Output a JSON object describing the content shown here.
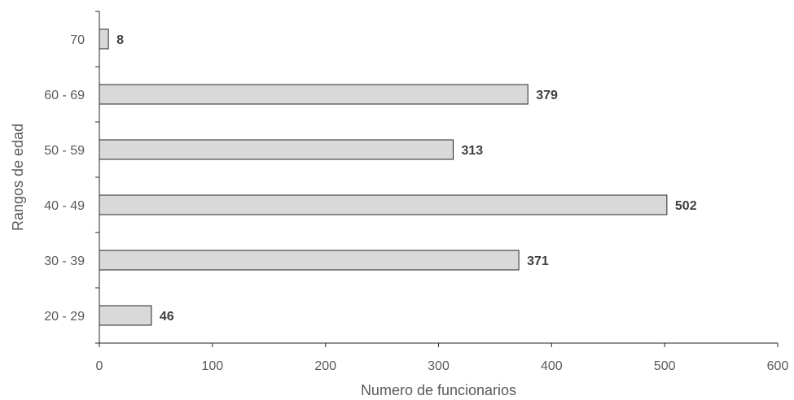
{
  "chart_data": {
    "type": "bar",
    "orientation": "horizontal",
    "categories": [
      "20 - 29",
      "30 - 39",
      "40 - 49",
      "50 - 59",
      "60 - 69",
      "70"
    ],
    "values": [
      46,
      371,
      502,
      313,
      379,
      8
    ],
    "data_labels": [
      "46",
      "371",
      "502",
      "313",
      "379",
      "8"
    ],
    "xlabel": "Numero de funcionarios",
    "ylabel": "Rangos de edad",
    "xlim": [
      0,
      600
    ],
    "xticks": [
      0,
      100,
      200,
      300,
      400,
      500,
      600
    ],
    "grid": false,
    "bar_color": "#d9d9d9",
    "bar_edge_color": "#262626"
  }
}
